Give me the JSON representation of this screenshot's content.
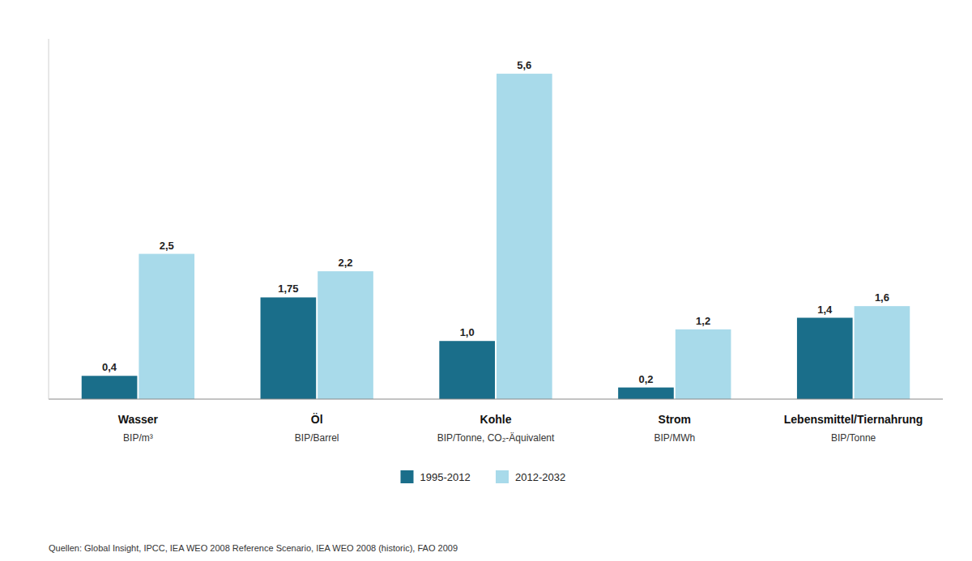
{
  "chart_data": {
    "type": "bar",
    "categories": [
      "Wasser",
      "Öl",
      "Kohle",
      "Strom",
      "Lebensmittel/Tiernahrung"
    ],
    "subcategories": [
      "BIP/m³",
      "BIP/Barrel",
      "BIP/Tonne, CO₂-Äquivalent",
      "BIP/MWh",
      "BIP/Tonne"
    ],
    "series": [
      {
        "name": "1995-2012",
        "color": "#1a6e8a",
        "values": [
          0.4,
          1.75,
          1.0,
          0.2,
          1.4
        ],
        "value_labels": [
          "0,4",
          "1,75",
          "1,0",
          "0,2",
          "1,4"
        ]
      },
      {
        "name": "2012-2032",
        "color": "#a8daea",
        "values": [
          2.5,
          2.2,
          5.6,
          1.2,
          1.6
        ],
        "value_labels": [
          "2,5",
          "2,2",
          "5,6",
          "1,2",
          "1,6"
        ]
      }
    ],
    "ylim": [
      0,
      6.2
    ],
    "grid": false,
    "legend": "bottom",
    "data_labels": true,
    "tick_labels": "x",
    "source": "Quellen: Global Insight, IPCC, IEA WEO 2008 Reference Scenario, IEA WEO 2008 (historic), FAO 2009"
  }
}
